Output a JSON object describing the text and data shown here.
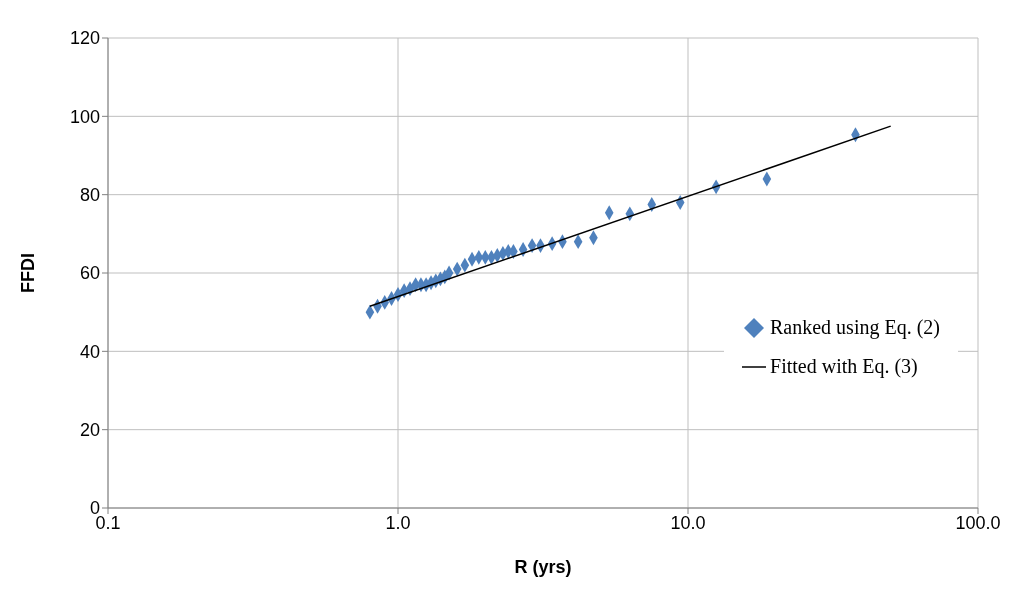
{
  "chart_data": {
    "type": "scatter",
    "xlabel": "R (yrs)",
    "ylabel": "FFDI",
    "log": "x",
    "grid": true,
    "legend": "right",
    "marker": "diamond",
    "xlim": [
      0.1,
      100
    ],
    "xticks": [
      {
        "value": 0.1,
        "label": "0.1"
      },
      {
        "value": 1,
        "label": "1.0"
      },
      {
        "value": 10,
        "label": "10.0"
      },
      {
        "value": 100,
        "label": "100.0"
      }
    ],
    "ylim": [
      0,
      120
    ],
    "yticks": [
      0,
      20,
      40,
      60,
      80,
      100,
      120
    ],
    "series": [
      {
        "name": "Ranked using Eq. (2)",
        "color": "#4f81bd",
        "x": [
          0.8,
          0.85,
          0.9,
          0.95,
          1.0,
          1.05,
          1.1,
          1.15,
          1.2,
          1.25,
          1.3,
          1.35,
          1.4,
          1.45,
          1.5,
          1.6,
          1.7,
          1.8,
          1.9,
          2.0,
          2.1,
          2.2,
          2.3,
          2.4,
          2.5,
          2.7,
          2.9,
          3.1,
          3.4,
          3.69,
          4.18,
          4.72,
          5.35,
          6.3,
          7.5,
          9.4,
          12.5,
          18.7,
          37.8
        ],
        "values": [
          50,
          51.5,
          52.5,
          53.5,
          54.5,
          55.5,
          56,
          57,
          57,
          57,
          57.5,
          58,
          58.5,
          59,
          60,
          61,
          62,
          63.5,
          64,
          64,
          64,
          64.5,
          65,
          65.5,
          65.5,
          66,
          67,
          67,
          67.5,
          68,
          68,
          69,
          75.4,
          75.1,
          77.5,
          78,
          82,
          84,
          95.3
        ]
      },
      {
        "name": "Fitted with Eq. (3)",
        "type": "line",
        "color": "#000000",
        "marker": "none",
        "x": [
          0.8,
          50
        ],
        "values": [
          51.5,
          97.5
        ]
      }
    ]
  }
}
